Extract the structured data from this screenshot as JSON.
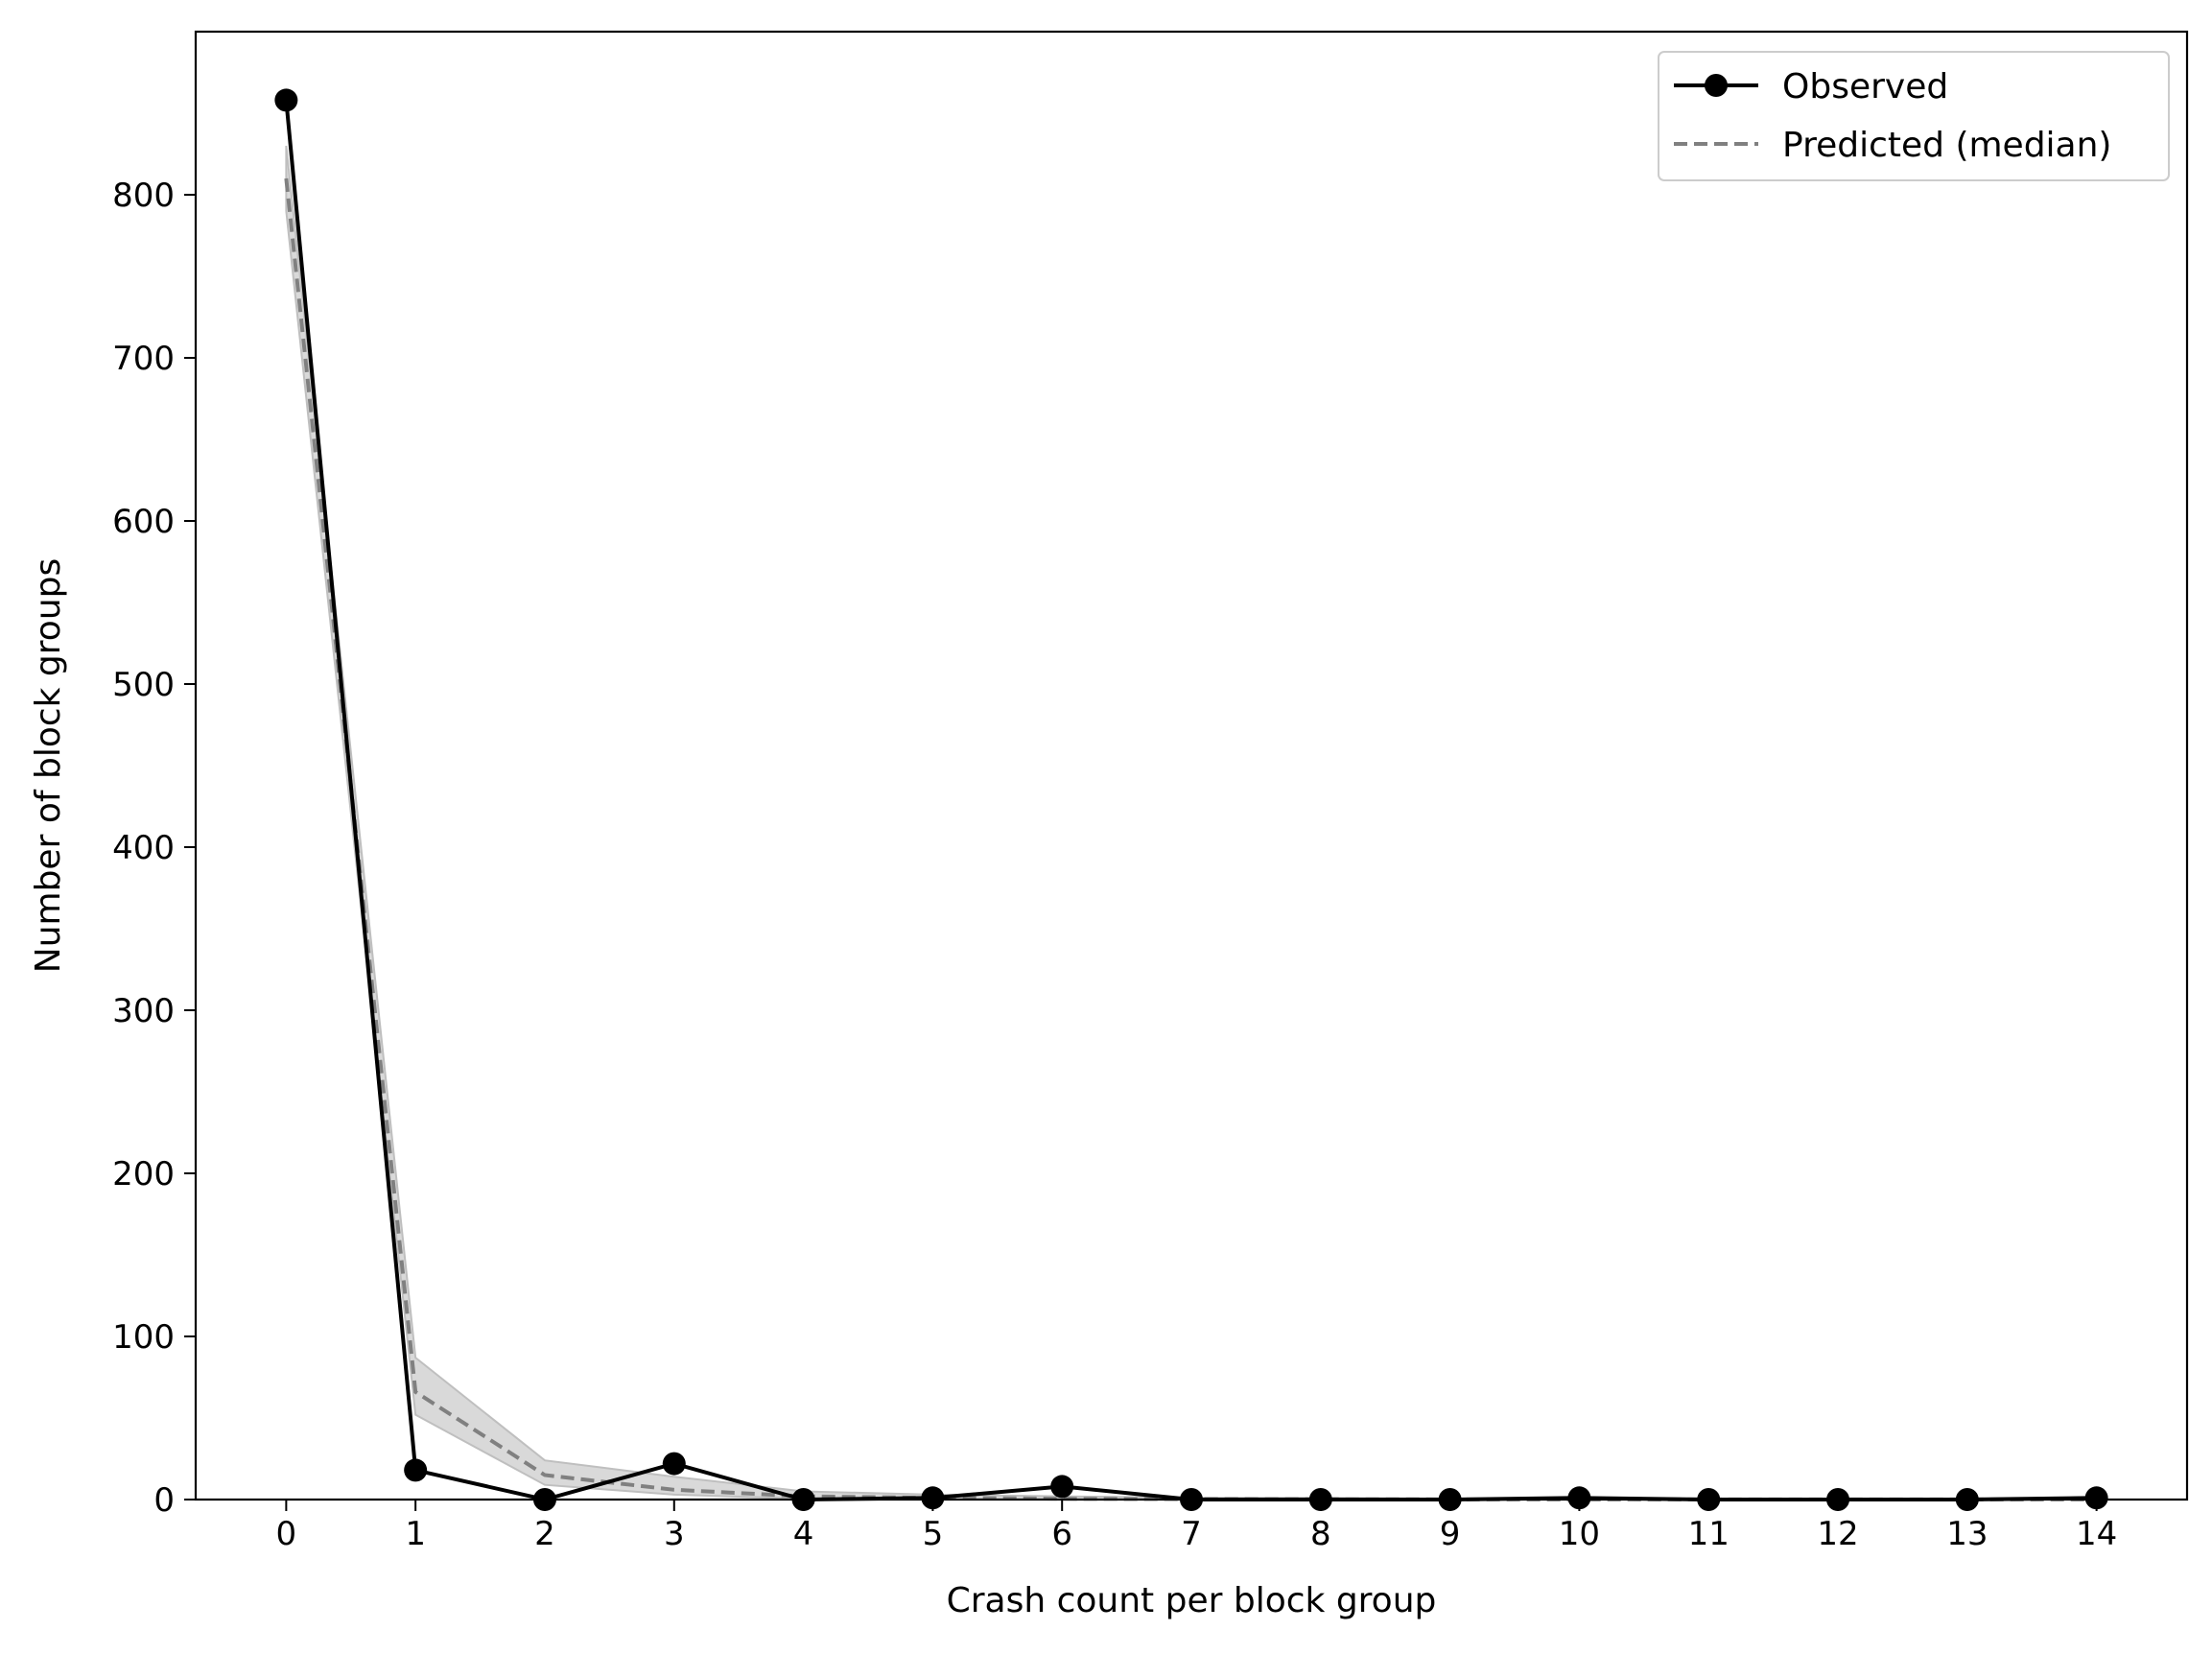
{
  "chart_data": {
    "type": "line",
    "title": "",
    "xlabel": "Crash count per block group",
    "ylabel": "Number of block groups",
    "xlim": [
      -0.7,
      14.7
    ],
    "ylim": [
      0,
      900
    ],
    "x_ticks": [
      "0",
      "1",
      "2",
      "3",
      "4",
      "5",
      "6",
      "7",
      "8",
      "9",
      "10",
      "11",
      "12",
      "13",
      "14"
    ],
    "y_ticks": [
      "0",
      "100",
      "200",
      "300",
      "400",
      "500",
      "600",
      "700",
      "800"
    ],
    "grid": false,
    "legend_position": "top-right",
    "x": [
      0,
      1,
      2,
      3,
      4,
      5,
      6,
      7,
      8,
      9,
      10,
      11,
      12,
      13,
      14
    ],
    "series": [
      {
        "name": "Observed",
        "style": "solid-with-markers",
        "color": "#000000",
        "values": [
          858,
          18,
          0,
          22,
          0,
          1,
          8,
          0,
          0,
          0,
          1,
          0,
          0,
          0,
          1
        ]
      },
      {
        "name": "Predicted (median)",
        "style": "dashed",
        "color": "#808080",
        "values": [
          810,
          66,
          15,
          6,
          2,
          1,
          0.5,
          0.3,
          0.2,
          0.1,
          0.1,
          0.1,
          0.1,
          0.1,
          0.1
        ],
        "band_lower": [
          790,
          52,
          9,
          3,
          0.5,
          0.2,
          0.1,
          0,
          0,
          0,
          0,
          0,
          0,
          0,
          0
        ],
        "band_upper": [
          830,
          87,
          24,
          14,
          5,
          3,
          2,
          1,
          1,
          0.5,
          0.5,
          0.3,
          0.3,
          0.3,
          0.3
        ],
        "band_color": "#bfbfbf"
      }
    ]
  }
}
